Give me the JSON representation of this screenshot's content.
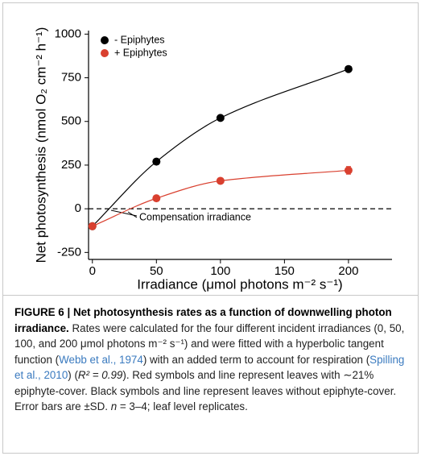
{
  "chart_data": {
    "type": "scatter",
    "ylabel": "Net photosynthesis (nmol O₂ cm⁻² h⁻¹)",
    "xlabel": "Irradiance (μmol photons m⁻² s⁻¹)",
    "annotation": "Compensation irradiance",
    "x": [
      0,
      50,
      100,
      200
    ],
    "series": [
      {
        "name": "- Epiphytes",
        "color": "#000000",
        "values": [
          -100,
          270,
          520,
          800
        ]
      },
      {
        "name": "+ Epiphytes",
        "color": "#d9402f",
        "values": [
          -100,
          60,
          160,
          220
        ],
        "errors": [
          5,
          8,
          10,
          22
        ]
      }
    ],
    "xlim": [
      -3,
      234
    ],
    "ylim": [
      -290,
      1020
    ],
    "xticks": [
      0,
      50,
      100,
      150,
      200
    ],
    "yticks": [
      -250,
      0,
      250,
      500,
      750,
      1000
    ],
    "legend": "upper left"
  },
  "caption": {
    "segments": [
      "FIGURE 6 | Net photosynthesis rates as a function of downwelling photon irradiance.",
      " Rates were calculated for the four different incident irradiances (0, 50, 100, and 200 μmol photons m⁻² s⁻¹) and were fitted with a hyperbolic tangent function (",
      "Webb et al., 1974",
      ") with an added term to account for respiration (",
      "Spilling et al., 2010",
      ") (",
      "R² = 0.99",
      "). Red symbols and line represent leaves with ∼21% epiphyte-cover. Black symbols and line represent leaves without epiphyte-cover. Error bars are ±SD. ",
      "n",
      " = 3–4; leaf level replicates."
    ]
  }
}
